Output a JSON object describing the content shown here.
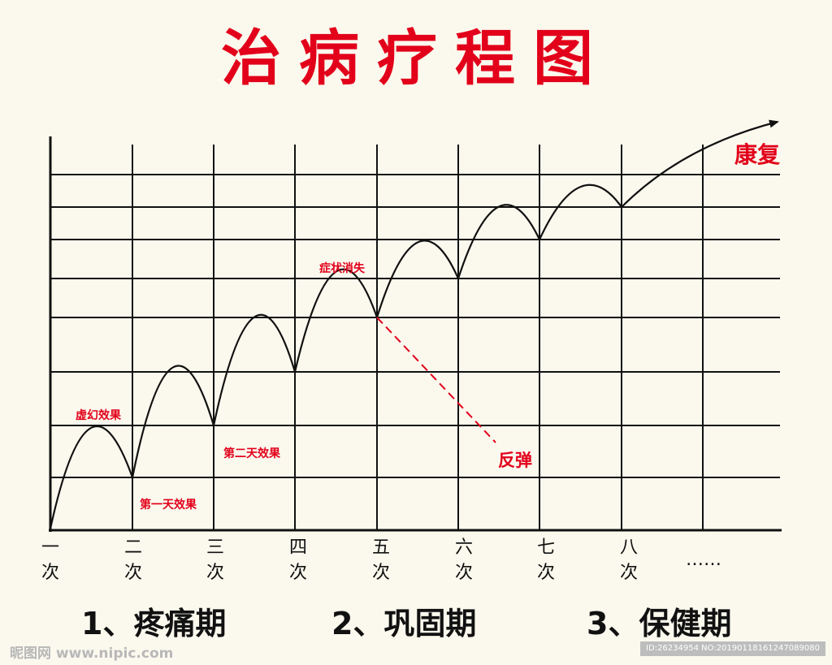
{
  "title": "治病疗程图",
  "x_ticks": [
    {
      "top": "一",
      "bottom": "次"
    },
    {
      "top": "二",
      "bottom": "次"
    },
    {
      "top": "三",
      "bottom": "次"
    },
    {
      "top": "四",
      "bottom": "次"
    },
    {
      "top": "五",
      "bottom": "次"
    },
    {
      "top": "六",
      "bottom": "次"
    },
    {
      "top": "七",
      "bottom": "次"
    },
    {
      "top": "八",
      "bottom": "次"
    }
  ],
  "x_ellipsis": "……",
  "annotations": {
    "illusion": "虚幻效果",
    "day_one": "第一天效果",
    "day_two": "第二天效果",
    "symptoms_gone": "症状消失",
    "rebound": "反弹",
    "recovery": "康复"
  },
  "stages": [
    "1、疼痛期",
    "2、巩固期",
    "3、保健期"
  ],
  "watermark": {
    "left": "昵图网 www.nipic.com",
    "right": "ID:26234954 NO:20190118161247089080"
  },
  "colors": {
    "accent": "#e2001a",
    "line": "#111111",
    "background": "#fbf9ee"
  }
}
